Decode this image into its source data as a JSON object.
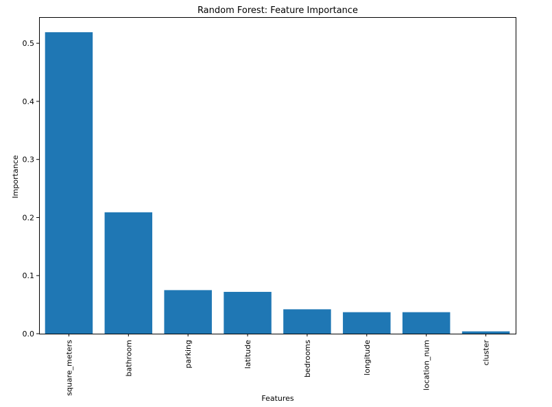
{
  "chart_data": {
    "type": "bar",
    "title": "Random Forest: Feature Importance",
    "xlabel": "Features",
    "ylabel": "Importance",
    "categories": [
      "square_meters",
      "bathroom",
      "parking",
      "latitude",
      "bedrooms",
      "longitude",
      "location_num",
      "cluster"
    ],
    "values": [
      0.519,
      0.209,
      0.075,
      0.072,
      0.042,
      0.037,
      0.037,
      0.004
    ],
    "ylim": [
      0,
      0.545
    ],
    "yticks": [
      0.0,
      0.1,
      0.2,
      0.3,
      0.4,
      0.5
    ],
    "ytick_labels": [
      "0.0",
      "0.1",
      "0.2",
      "0.3",
      "0.4",
      "0.5"
    ],
    "grid": false,
    "bar_color": "#1f77b4"
  }
}
